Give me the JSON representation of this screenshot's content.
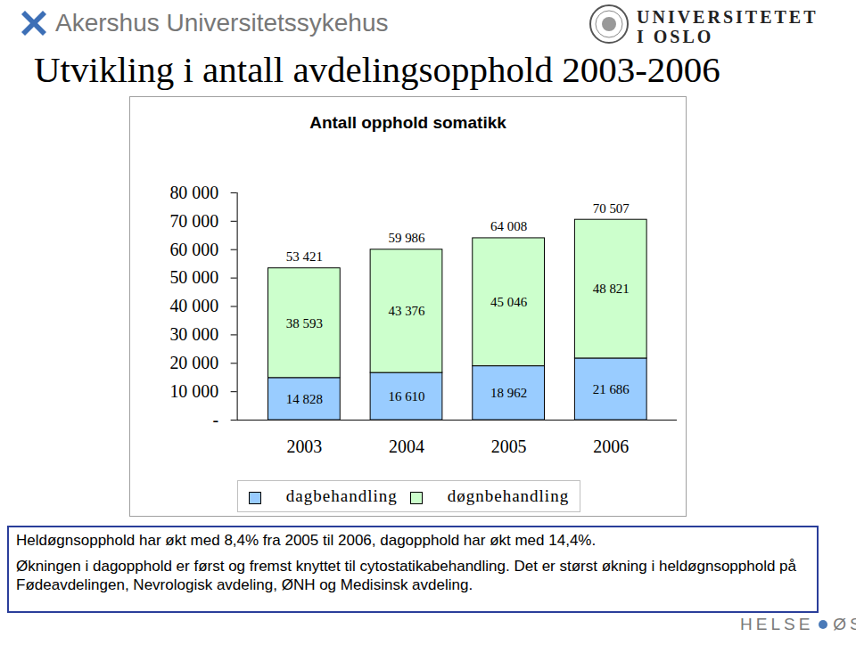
{
  "slide": {
    "header_left": "Akershus Universitetssykehus",
    "header_right": [
      "UNIVERSITETET",
      "I OSLO"
    ],
    "title": "Utvikling i antall avdelingsopphold 2003-2006",
    "notes": [
      "Heldøgnsopphold har økt med 8,4% fra 2005 til 2006, dagopphold har økt med 14,4%.",
      "Økningen i dagopphold er først og fremst knyttet til cytostatikabehandling. Det er størst økning i heldøgnsopphold på Fødeavdelingen, Nevrologisk avdeling, ØNH og Medisinsk avdeling."
    ],
    "footer": [
      "HELSE",
      "ØST"
    ]
  },
  "chart_data": {
    "type": "bar",
    "title": "Antall opphold somatikk",
    "stacked": true,
    "data_labels": true,
    "grid": false,
    "categories": [
      "2003",
      "2004",
      "2005",
      "2006"
    ],
    "series": [
      {
        "name": "dagbehandling",
        "color": "#99ccff",
        "values": [
          14828,
          16610,
          18962,
          21686
        ],
        "value_labels": [
          "14 828",
          "16 610",
          "18 962",
          "21 686"
        ]
      },
      {
        "name": "døgnbehandling",
        "color": "#ccffcc",
        "values": [
          38593,
          43376,
          45046,
          48821
        ],
        "value_labels": [
          "38 593",
          "43 376",
          "45 046",
          "48 821"
        ]
      }
    ],
    "totals": [
      53421,
      59986,
      64008,
      70507
    ],
    "totals_labels": [
      "53 421",
      "59 986",
      "64 008",
      "70 507"
    ],
    "ylim": [
      0,
      80000
    ],
    "yticks": [
      {
        "value": 0,
        "label": "-"
      },
      {
        "value": 10000,
        "label": "10 000"
      },
      {
        "value": 20000,
        "label": "20 000"
      },
      {
        "value": 30000,
        "label": "30 000"
      },
      {
        "value": 40000,
        "label": "40 000"
      },
      {
        "value": 50000,
        "label": "50 000"
      },
      {
        "value": 60000,
        "label": "60 000"
      },
      {
        "value": 70000,
        "label": "70 000"
      },
      {
        "value": 80000,
        "label": "80 000"
      }
    ],
    "legend": "bottom"
  }
}
